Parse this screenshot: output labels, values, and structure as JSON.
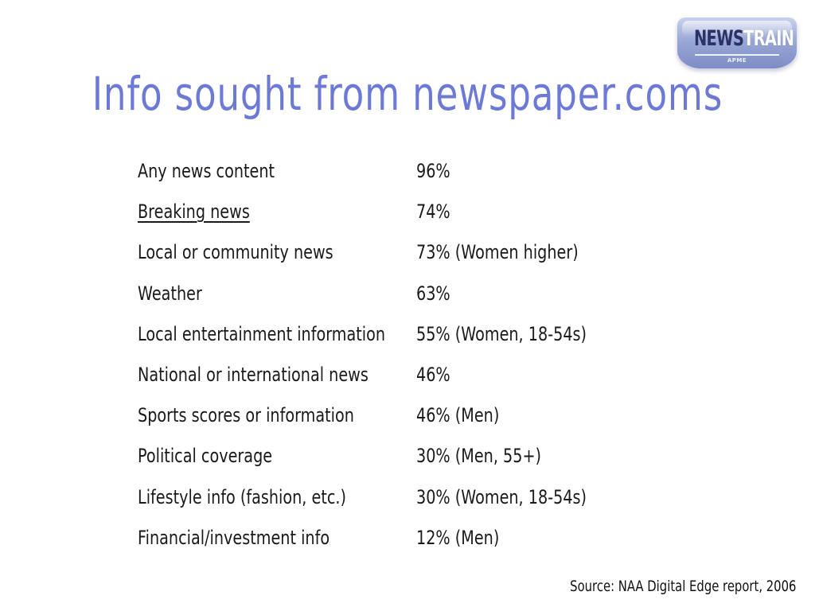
{
  "logo": {
    "word_part1": "NEWS",
    "word_part2": "TRAIN",
    "subtext": "APME",
    "colors": {
      "badge": "#8f9dd2",
      "dark_text": "#2b3163"
    }
  },
  "title": "Info sought from newspaper.coms",
  "title_color": "#6c7ad6",
  "rows": [
    {
      "label": "Any news content",
      "value": "96%",
      "underlined": false
    },
    {
      "label": "Breaking news",
      "value": "74%",
      "underlined": true
    },
    {
      "label": "Local or community news",
      "value": "73% (Women higher)",
      "underlined": false
    },
    {
      "label": "Weather",
      "value": "63%",
      "underlined": false
    },
    {
      "label": "Local entertainment information",
      "value": "55% (Women, 18-54s)",
      "underlined": false
    },
    {
      "label": "National or international news",
      "value": "46%",
      "underlined": false
    },
    {
      "label": "Sports scores or information",
      "value": "46% (Men)",
      "underlined": false
    },
    {
      "label": "Political coverage",
      "value": "30% (Men, 55+)",
      "underlined": false
    },
    {
      "label": "Lifestyle info (fashion, etc.)",
      "value": "30% (Women, 18-54s)",
      "underlined": false
    },
    {
      "label": "Financial/investment info",
      "value": "12% (Men)",
      "underlined": false
    }
  ],
  "source": "Source: NAA Digital Edge report, 2006"
}
